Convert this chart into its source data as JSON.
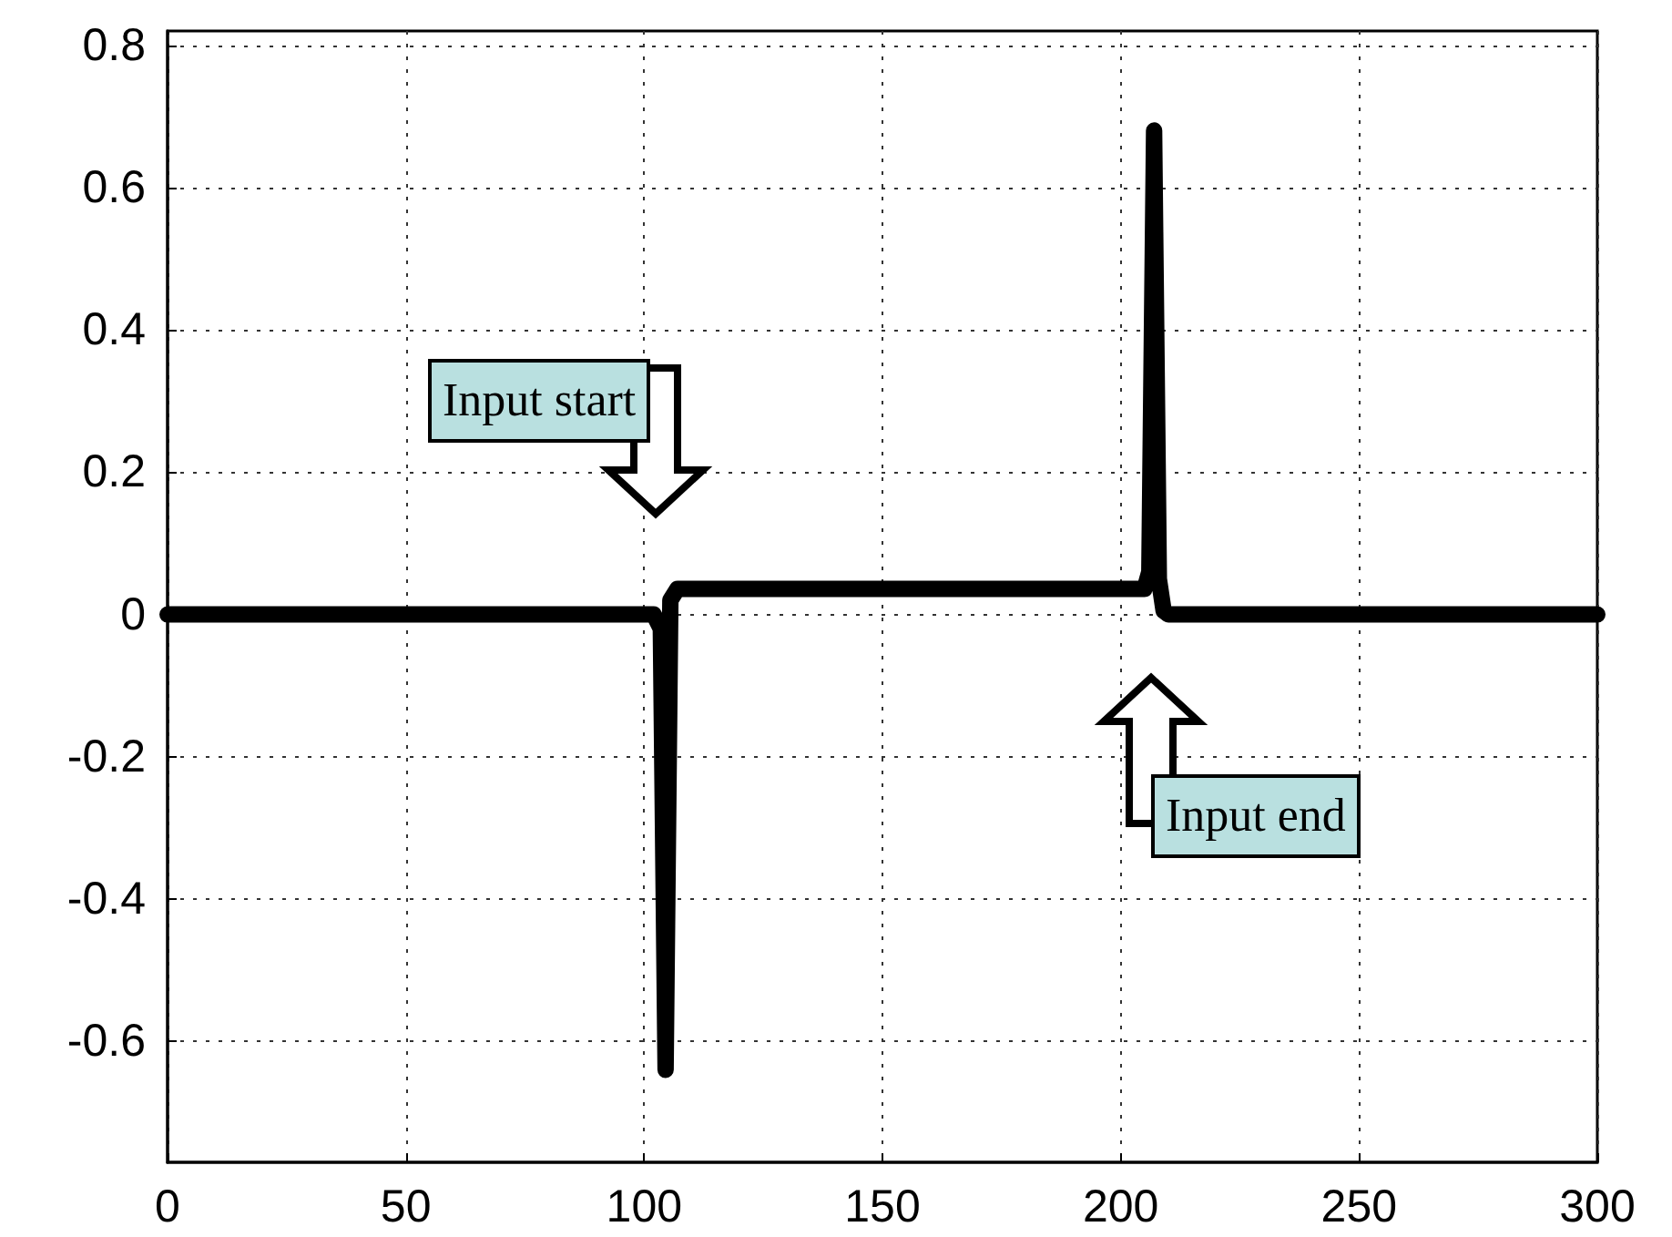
{
  "chart_data": {
    "type": "line",
    "x": [
      0,
      102,
      103.5,
      104.5,
      105.5,
      107,
      205,
      206,
      207,
      208,
      209,
      210,
      300
    ],
    "series": [
      {
        "color": "#000000",
        "values": [
          0,
          0,
          -0.02,
          -0.64,
          0.02,
          0.036,
          0.036,
          0.06,
          0.68,
          0.05,
          0.005,
          0,
          0
        ]
      }
    ],
    "xlim": [
      0,
      300
    ],
    "xticks": [
      0,
      50,
      100,
      150,
      200,
      250,
      300
    ],
    "ylim": [
      -0.77,
      0.82
    ],
    "yticks": [
      -0.6,
      -0.4,
      -0.2,
      0,
      0.2,
      0.4,
      0.6,
      0.8
    ],
    "grid": true,
    "line_style": "solid",
    "annotations": [
      "Input start",
      "Input end"
    ]
  }
}
